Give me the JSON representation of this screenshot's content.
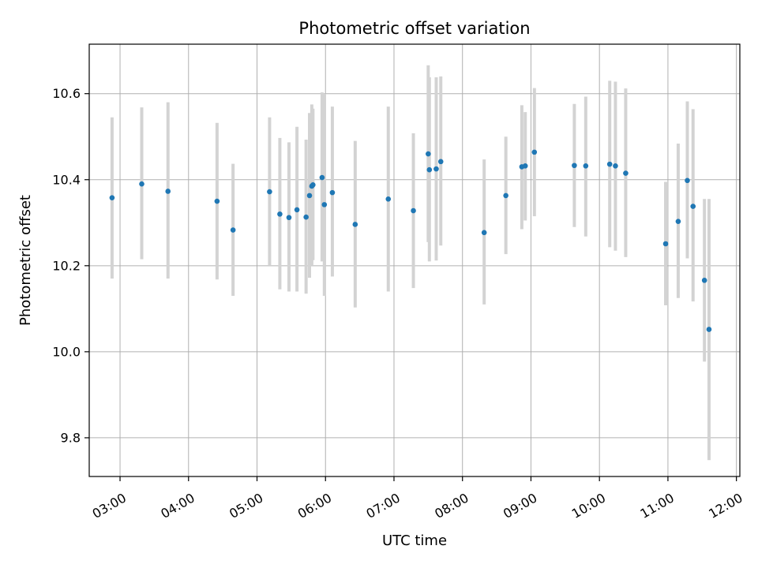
{
  "chart_data": {
    "type": "scatter",
    "title": "Photometric offset variation",
    "xlabel": "UTC time",
    "ylabel": "Photometric offset",
    "grid": true,
    "legend": "none",
    "x_axis": {
      "kind": "time",
      "range": [
        "02:33",
        "12:03"
      ],
      "ticks": [
        "03:00",
        "04:00",
        "05:00",
        "06:00",
        "07:00",
        "08:00",
        "09:00",
        "10:00",
        "11:00",
        "12:00"
      ]
    },
    "y_axis": {
      "range": [
        9.71,
        10.715
      ],
      "ticks": [
        9.8,
        10.0,
        10.2,
        10.4,
        10.6
      ],
      "tick_labels": [
        "9.8",
        "10.0",
        "10.2",
        "10.4",
        "10.6"
      ]
    },
    "colors": {
      "point": "#1f77b4",
      "errorbar": "#d3d3d3",
      "grid": "#b0b0b0"
    },
    "points": [
      {
        "x": "02:53",
        "y": 10.358,
        "ylow": 10.17,
        "yhigh": 10.545
      },
      {
        "x": "03:19",
        "y": 10.39,
        "ylow": 10.215,
        "yhigh": 10.568
      },
      {
        "x": "03:42",
        "y": 10.373,
        "ylow": 10.17,
        "yhigh": 10.58
      },
      {
        "x": "04:25",
        "y": 10.35,
        "ylow": 10.168,
        "yhigh": 10.532
      },
      {
        "x": "04:39",
        "y": 10.283,
        "ylow": 10.13,
        "yhigh": 10.437
      },
      {
        "x": "05:11",
        "y": 10.372,
        "ylow": 10.2,
        "yhigh": 10.545
      },
      {
        "x": "05:20",
        "y": 10.32,
        "ylow": 10.145,
        "yhigh": 10.497
      },
      {
        "x": "05:28",
        "y": 10.312,
        "ylow": 10.14,
        "yhigh": 10.487
      },
      {
        "x": "05:35",
        "y": 10.33,
        "ylow": 10.14,
        "yhigh": 10.523
      },
      {
        "x": "05:43",
        "y": 10.313,
        "ylow": 10.135,
        "yhigh": 10.493
      },
      {
        "x": "05:46",
        "y": 10.363,
        "ylow": 10.172,
        "yhigh": 10.555
      },
      {
        "x": "05:48",
        "y": 10.385,
        "ylow": 10.2,
        "yhigh": 10.575
      },
      {
        "x": "05:49",
        "y": 10.388,
        "ylow": 10.213,
        "yhigh": 10.565
      },
      {
        "x": "05:57",
        "y": 10.405,
        "ylow": 10.21,
        "yhigh": 10.603
      },
      {
        "x": "05:59",
        "y": 10.342,
        "ylow": 10.13,
        "yhigh": 10.6
      },
      {
        "x": "06:06",
        "y": 10.37,
        "ylow": 10.175,
        "yhigh": 10.57
      },
      {
        "x": "06:26",
        "y": 10.296,
        "ylow": 10.103,
        "yhigh": 10.49
      },
      {
        "x": "06:55",
        "y": 10.355,
        "ylow": 10.14,
        "yhigh": 10.57
      },
      {
        "x": "07:17",
        "y": 10.328,
        "ylow": 10.148,
        "yhigh": 10.508
      },
      {
        "x": "07:30",
        "y": 10.46,
        "ylow": 10.255,
        "yhigh": 10.666
      },
      {
        "x": "07:31",
        "y": 10.423,
        "ylow": 10.21,
        "yhigh": 10.638
      },
      {
        "x": "07:37",
        "y": 10.425,
        "ylow": 10.212,
        "yhigh": 10.638
      },
      {
        "x": "07:41",
        "y": 10.442,
        "ylow": 10.247,
        "yhigh": 10.64
      },
      {
        "x": "08:19",
        "y": 10.277,
        "ylow": 10.11,
        "yhigh": 10.447
      },
      {
        "x": "08:38",
        "y": 10.363,
        "ylow": 10.227,
        "yhigh": 10.5
      },
      {
        "x": "08:52",
        "y": 10.43,
        "ylow": 10.285,
        "yhigh": 10.573
      },
      {
        "x": "08:55",
        "y": 10.432,
        "ylow": 10.305,
        "yhigh": 10.557
      },
      {
        "x": "09:03",
        "y": 10.464,
        "ylow": 10.315,
        "yhigh": 10.613
      },
      {
        "x": "09:38",
        "y": 10.433,
        "ylow": 10.29,
        "yhigh": 10.576
      },
      {
        "x": "09:48",
        "y": 10.432,
        "ylow": 10.268,
        "yhigh": 10.593
      },
      {
        "x": "10:09",
        "y": 10.436,
        "ylow": 10.243,
        "yhigh": 10.63
      },
      {
        "x": "10:14",
        "y": 10.432,
        "ylow": 10.235,
        "yhigh": 10.628
      },
      {
        "x": "10:23",
        "y": 10.415,
        "ylow": 10.22,
        "yhigh": 10.612
      },
      {
        "x": "10:58",
        "y": 10.251,
        "ylow": 10.108,
        "yhigh": 10.395
      },
      {
        "x": "11:09",
        "y": 10.303,
        "ylow": 10.125,
        "yhigh": 10.484
      },
      {
        "x": "11:17",
        "y": 10.398,
        "ylow": 10.217,
        "yhigh": 10.582
      },
      {
        "x": "11:22",
        "y": 10.338,
        "ylow": 10.117,
        "yhigh": 10.564
      },
      {
        "x": "11:32",
        "y": 10.166,
        "ylow": 9.977,
        "yhigh": 10.355
      },
      {
        "x": "11:36",
        "y": 10.052,
        "ylow": 9.748,
        "yhigh": 10.355
      }
    ]
  }
}
